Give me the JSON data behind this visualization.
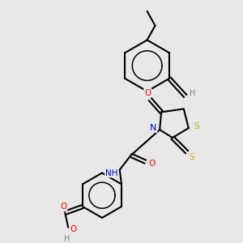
{
  "bg_color": "#e8e8e8",
  "bond_color": "#000000",
  "atom_colors": {
    "O": "#ff0000",
    "N": "#0000cd",
    "S": "#b8b800",
    "H": "#708090",
    "C": "#000000"
  },
  "figsize": [
    3.0,
    3.0
  ],
  "dpi": 100
}
